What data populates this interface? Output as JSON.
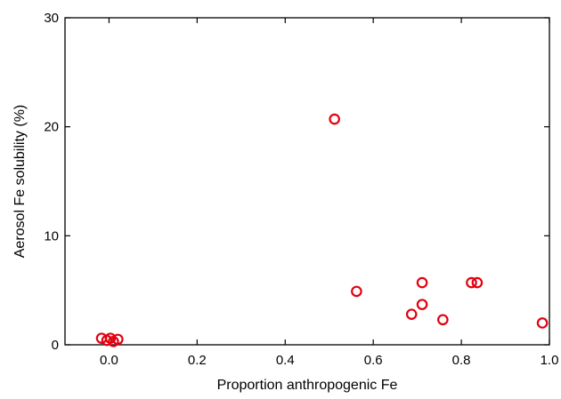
{
  "chart_data": {
    "type": "scatter",
    "title": "",
    "xlabel": "Proportion anthropogenic Fe",
    "ylabel": "Aerosol Fe solubility (%)",
    "xlim": [
      -0.1,
      1.0
    ],
    "ylim": [
      0,
      30
    ],
    "x_ticks": [
      0.0,
      0.2,
      0.4,
      0.6,
      0.8,
      1.0
    ],
    "x_tick_labels": [
      "0.0",
      "0.2",
      "0.4",
      "0.6",
      "0.8",
      "1.0"
    ],
    "y_ticks": [
      0,
      10,
      20,
      30
    ],
    "y_tick_labels": [
      "0",
      "10",
      "20",
      "30"
    ],
    "grid": false,
    "legend": "none",
    "marker": "open-circle",
    "marker_color": "#e3000f",
    "series": [
      {
        "points": [
          {
            "x": -0.017,
            "y": 0.6
          },
          {
            "x": -0.005,
            "y": 0.4
          },
          {
            "x": 0.003,
            "y": 0.6
          },
          {
            "x": 0.01,
            "y": 0.3
          },
          {
            "x": 0.02,
            "y": 0.5
          },
          {
            "x": 0.512,
            "y": 20.7
          },
          {
            "x": 0.562,
            "y": 4.9
          },
          {
            "x": 0.687,
            "y": 2.8
          },
          {
            "x": 0.711,
            "y": 5.7
          },
          {
            "x": 0.711,
            "y": 3.7
          },
          {
            "x": 0.758,
            "y": 2.3
          },
          {
            "x": 0.823,
            "y": 5.7
          },
          {
            "x": 0.836,
            "y": 5.7
          },
          {
            "x": 0.984,
            "y": 2.0
          }
        ]
      }
    ]
  }
}
